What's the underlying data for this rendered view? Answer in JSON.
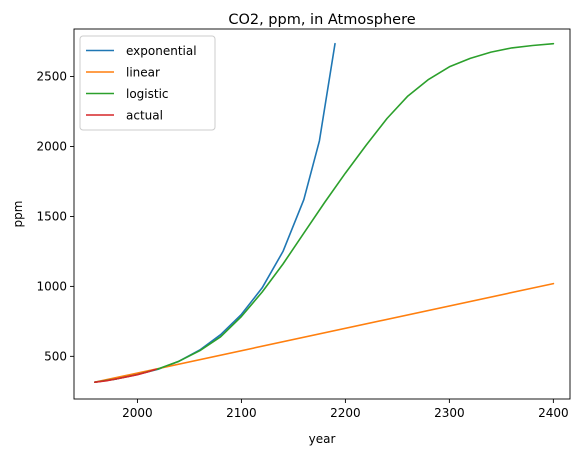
{
  "chart_data": {
    "type": "line",
    "title": "CO2, ppm, in Atmosphere",
    "xlabel": "year",
    "ylabel": "ppm",
    "xlim": [
      1939,
      2416
    ],
    "ylim": [
      195,
      2840
    ],
    "xticks": [
      2000,
      2100,
      2200,
      2300,
      2400
    ],
    "yticks": [
      500,
      1000,
      1500,
      2000,
      2500
    ],
    "grid": false,
    "legend_position": "top-left",
    "series": [
      {
        "name": "exponential",
        "color": "#1f77b4",
        "points": [
          [
            1959,
            315
          ],
          [
            1980,
            339
          ],
          [
            2000,
            370
          ],
          [
            2020,
            408
          ],
          [
            2040,
            465
          ],
          [
            2060,
            545
          ],
          [
            2080,
            655
          ],
          [
            2100,
            800
          ],
          [
            2120,
            990
          ],
          [
            2140,
            1250
          ],
          [
            2160,
            1620
          ],
          [
            2175,
            2040
          ],
          [
            2190,
            2735
          ]
        ]
      },
      {
        "name": "linear",
        "color": "#ff7f0e",
        "points": [
          [
            1959,
            315
          ],
          [
            2400,
            1020
          ]
        ]
      },
      {
        "name": "logistic",
        "color": "#2ca02c",
        "points": [
          [
            1959,
            315
          ],
          [
            1980,
            339
          ],
          [
            2000,
            370
          ],
          [
            2020,
            410
          ],
          [
            2040,
            465
          ],
          [
            2060,
            540
          ],
          [
            2080,
            640
          ],
          [
            2100,
            785
          ],
          [
            2120,
            960
          ],
          [
            2140,
            1160
          ],
          [
            2160,
            1380
          ],
          [
            2180,
            1600
          ],
          [
            2200,
            1810
          ],
          [
            2220,
            2010
          ],
          [
            2240,
            2200
          ],
          [
            2260,
            2360
          ],
          [
            2280,
            2480
          ],
          [
            2300,
            2570
          ],
          [
            2320,
            2630
          ],
          [
            2340,
            2675
          ],
          [
            2360,
            2705
          ],
          [
            2380,
            2722
          ],
          [
            2400,
            2735
          ]
        ]
      },
      {
        "name": "actual",
        "color": "#d62728",
        "points": [
          [
            1959,
            315
          ],
          [
            1970,
            325
          ],
          [
            1980,
            339
          ],
          [
            1990,
            354
          ],
          [
            2000,
            369
          ],
          [
            2010,
            389
          ],
          [
            2018,
            408
          ]
        ]
      }
    ]
  }
}
